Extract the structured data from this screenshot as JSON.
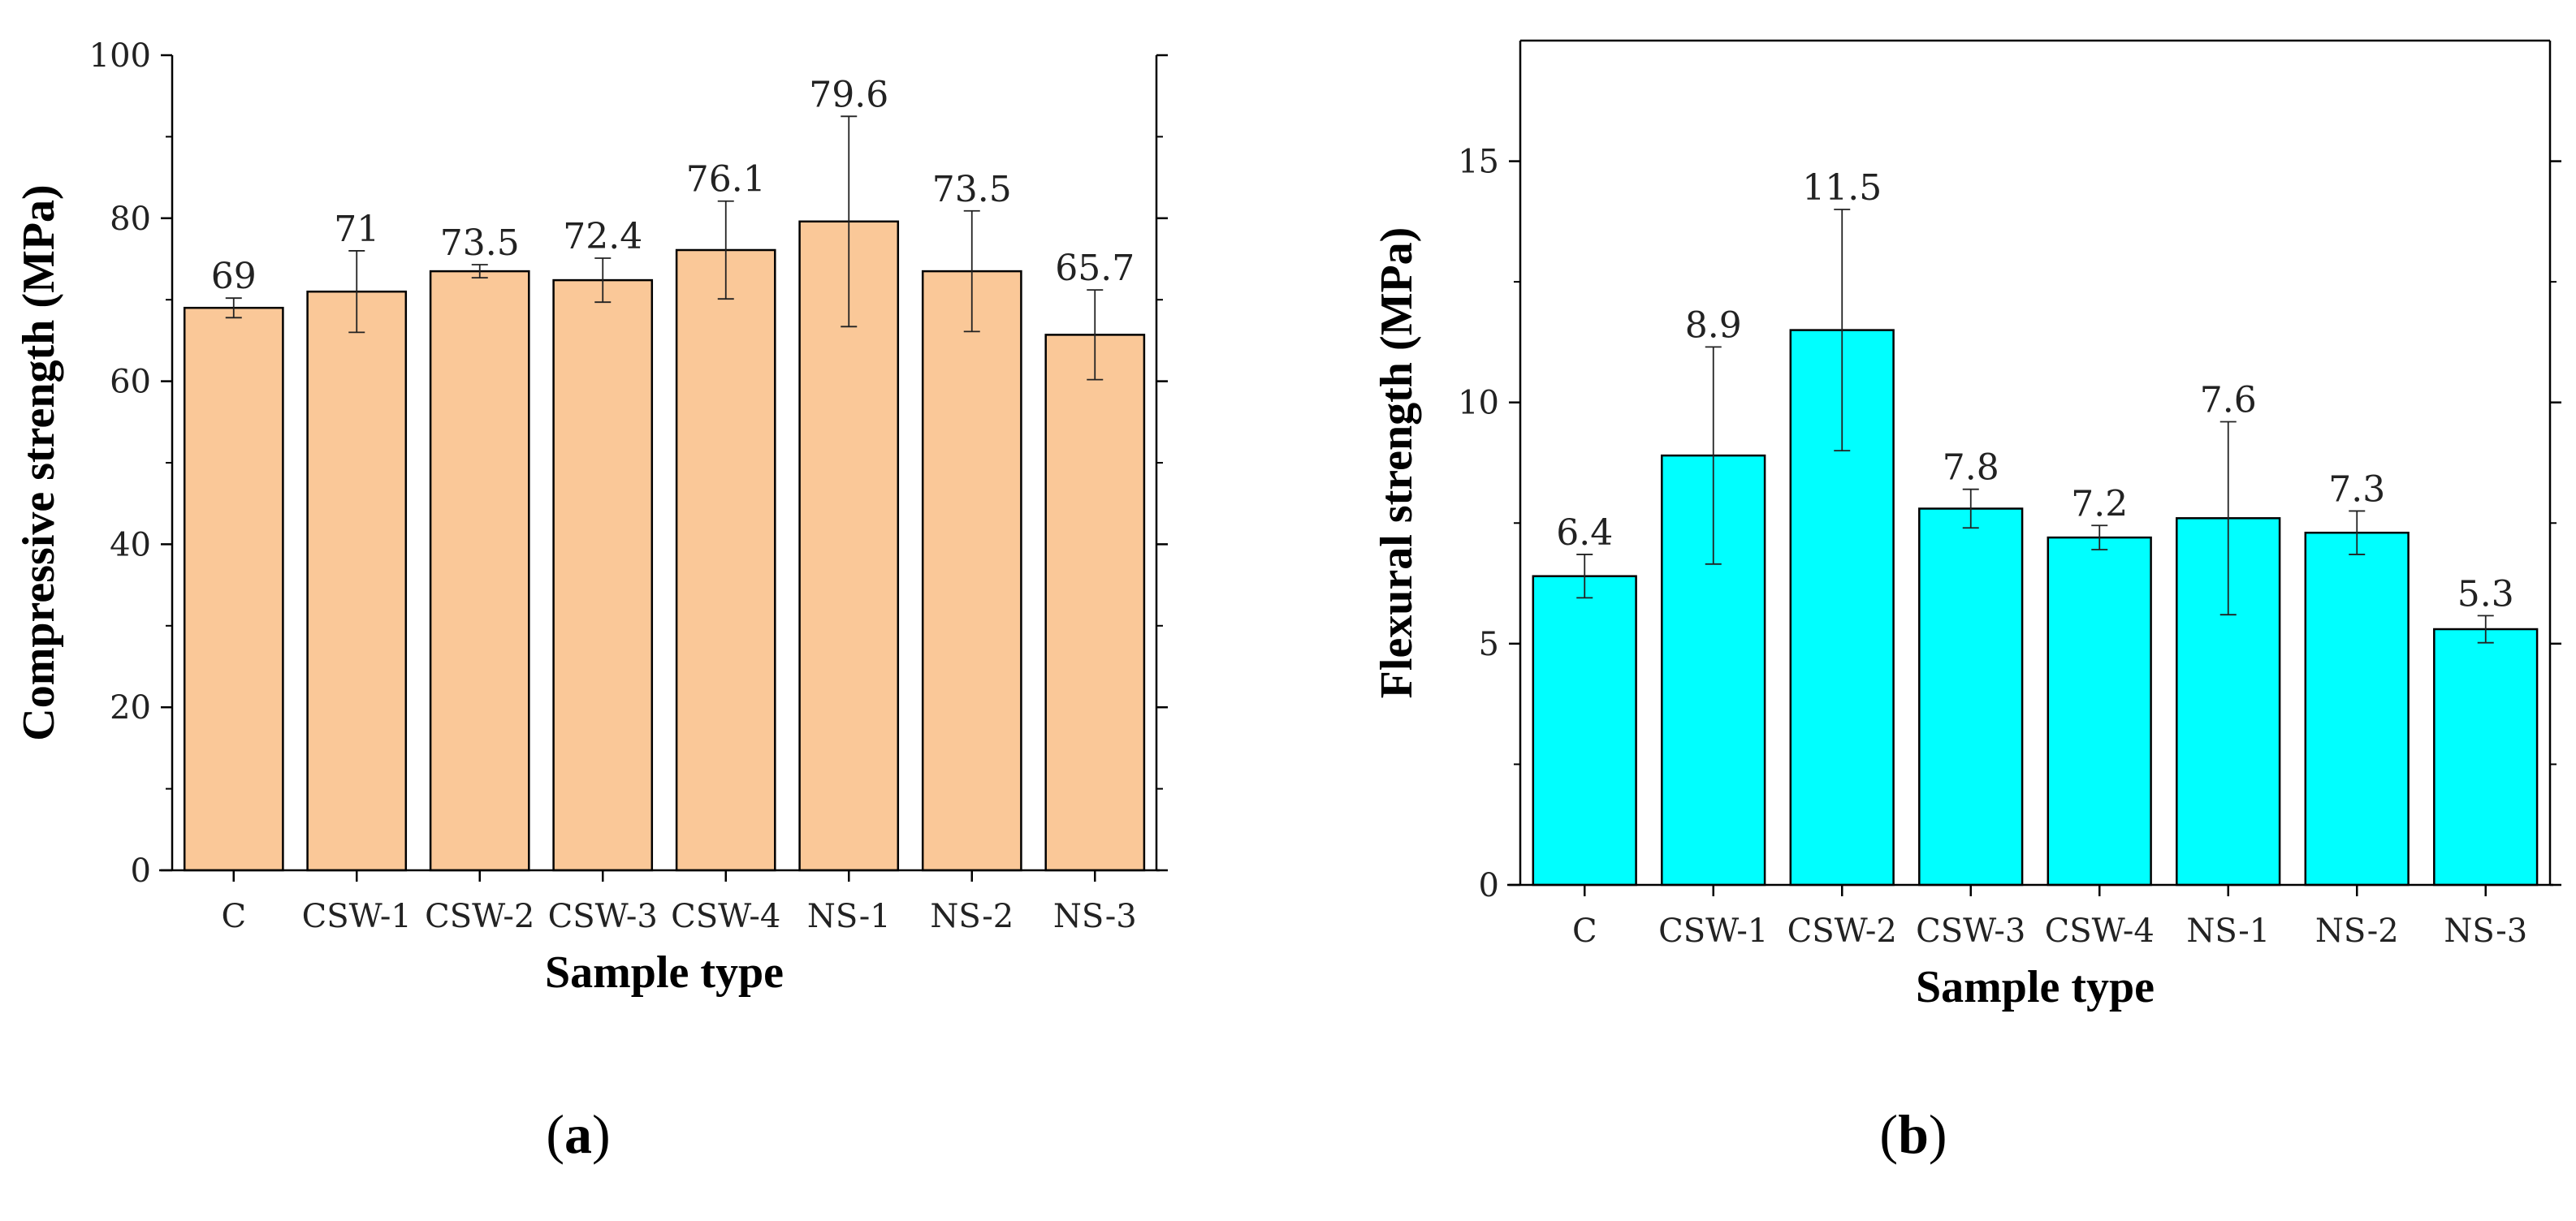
{
  "chart_data": [
    {
      "type": "bar",
      "panel_label": "a",
      "title": "",
      "xlabel": "Sample type",
      "ylabel": "Compressive strength (MPa)",
      "ylim": [
        0,
        100
      ],
      "yticks": [
        0,
        20,
        40,
        60,
        80,
        100
      ],
      "grid": false,
      "categories": [
        "C",
        "CSW-1",
        "CSW-2",
        "CSW-3",
        "CSW-4",
        "NS-1",
        "NS-2",
        "NS-3"
      ],
      "values": [
        69,
        71,
        73.5,
        72.4,
        76.1,
        79.6,
        73.5,
        65.7
      ],
      "value_labels": [
        "69",
        "71",
        "73.5",
        "72.4",
        "76.1",
        "79.6",
        "73.5",
        "65.7"
      ],
      "errors": [
        1.2,
        5.0,
        0.8,
        2.7,
        6.0,
        12.9,
        7.4,
        5.5
      ],
      "bar_color": "#FAC898"
    },
    {
      "type": "bar",
      "panel_label": "b",
      "title": "",
      "xlabel": "Sample type",
      "ylabel": "Flexural strength (MPa)",
      "ylim": [
        0,
        17.5
      ],
      "yticks": [
        0,
        5,
        10,
        15
      ],
      "grid": false,
      "categories": [
        "C",
        "CSW-1",
        "CSW-2",
        "CSW-3",
        "CSW-4",
        "NS-1",
        "NS-2",
        "NS-3"
      ],
      "values": [
        6.4,
        8.9,
        11.5,
        7.8,
        7.2,
        7.6,
        7.3,
        5.3
      ],
      "value_labels": [
        "6.4",
        "8.9",
        "11.5",
        "7.8",
        "7.2",
        "7.6",
        "7.3",
        "5.3"
      ],
      "errors": [
        0.45,
        2.25,
        2.5,
        0.4,
        0.25,
        2.0,
        0.45,
        0.28
      ],
      "bar_color": "#00FFFF"
    }
  ]
}
